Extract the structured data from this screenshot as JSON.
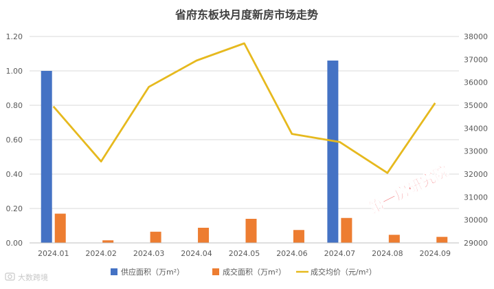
{
  "chart_data": {
    "type": "bar+line",
    "title": "省府东板块月度新房市场走势",
    "categories": [
      "2024.01",
      "2024.02",
      "2024.03",
      "2024.04",
      "2024.05",
      "2024.06",
      "2024.07",
      "2024.08",
      "2024.09"
    ],
    "y_left": {
      "min": 0,
      "max": 1.2,
      "ticks": [
        "0.00",
        "0.20",
        "0.40",
        "0.60",
        "0.80",
        "1.00",
        "1.20"
      ]
    },
    "y_right": {
      "min": 29000,
      "max": 38000,
      "ticks": [
        "29000",
        "30000",
        "31000",
        "32000",
        "33000",
        "34000",
        "35000",
        "36000",
        "37000",
        "38000"
      ]
    },
    "series": [
      {
        "name": "供应面积（万m²）",
        "type": "bar",
        "axis": "left",
        "color": "#4472C4",
        "values": [
          1.0,
          0,
          0,
          0,
          0,
          0,
          1.06,
          0,
          0
        ]
      },
      {
        "name": "成交面积（万m²）",
        "type": "bar",
        "axis": "left",
        "color": "#ED7D31",
        "values": [
          0.17,
          0.015,
          0.065,
          0.088,
          0.14,
          0.075,
          0.145,
          0.047,
          0.035
        ]
      },
      {
        "name": "成交均价（元/m²）",
        "type": "line",
        "axis": "right",
        "color": "#E6B91E",
        "values": [
          34950,
          32550,
          35800,
          36950,
          37700,
          33750,
          33400,
          32050,
          35100
        ]
      }
    ],
    "legend_position": "bottom",
    "grid": true
  },
  "watermark": {
    "text": "第一房研究院",
    "color": "#E8141B"
  },
  "footer_logo": {
    "text": "大数跨境"
  }
}
